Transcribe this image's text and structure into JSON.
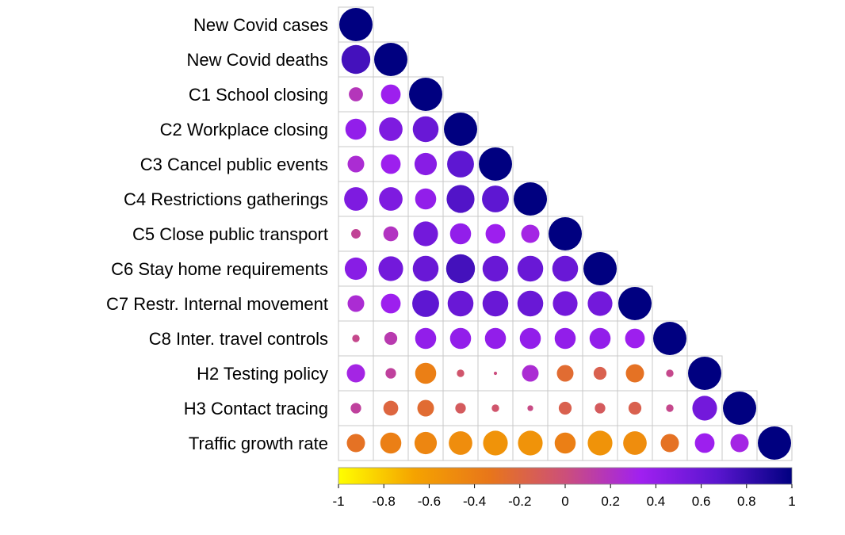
{
  "chart_data": {
    "type": "heatmap",
    "subtype": "correlation-lower-triangle-circles",
    "variables": [
      "New Covid cases",
      "New Covid deaths",
      "C1 School closing",
      "C2 Workplace closing",
      "C3 Cancel public events",
      "C4 Restrictions gatherings",
      "C5 Close public transport",
      "C6 Stay home requirements",
      "C7 Restr. Internal movement",
      "C8 Inter. travel controls",
      "H2 Testing policy",
      "H3 Contact tracing",
      "Traffic growth rate"
    ],
    "matrix": [
      [
        1
      ],
      [
        0.75,
        1
      ],
      [
        0.18,
        0.35,
        1
      ],
      [
        0.4,
        0.5,
        0.6,
        1
      ],
      [
        0.25,
        0.35,
        0.45,
        0.65,
        1
      ],
      [
        0.5,
        0.5,
        0.4,
        0.7,
        0.65,
        1
      ],
      [
        0.08,
        0.2,
        0.55,
        0.4,
        0.35,
        0.3,
        1
      ],
      [
        0.45,
        0.55,
        0.6,
        0.75,
        0.6,
        0.6,
        0.6,
        1
      ],
      [
        0.25,
        0.35,
        0.65,
        0.6,
        0.6,
        0.6,
        0.55,
        0.55,
        1
      ],
      [
        0.05,
        0.15,
        0.4,
        0.4,
        0.4,
        0.4,
        0.4,
        0.4,
        0.35,
        1
      ],
      [
        0.3,
        0.1,
        -0.4,
        -0.05,
        0.01,
        0.25,
        -0.25,
        -0.15,
        -0.3,
        0.05,
        1
      ],
      [
        0.1,
        -0.2,
        -0.25,
        -0.1,
        -0.05,
        0.03,
        -0.15,
        -0.1,
        -0.15,
        0.05,
        0.55,
        1
      ],
      [
        -0.3,
        -0.4,
        -0.45,
        -0.5,
        -0.55,
        -0.55,
        -0.4,
        -0.55,
        -0.5,
        -0.3,
        0.35,
        0.3,
        1
      ]
    ],
    "colorbar": {
      "range": [
        -1,
        1
      ],
      "ticks": [
        "-1",
        "-0.8",
        "-0.6",
        "-0.4",
        "-0.2",
        "0",
        "0.2",
        "0.4",
        "0.6",
        "0.8",
        "1"
      ],
      "colors": [
        "#FFFF00",
        "#F5A300",
        "#E8761A",
        "#CC4F7A",
        "#A020F0",
        "#5B16D0",
        "#000080"
      ]
    }
  }
}
